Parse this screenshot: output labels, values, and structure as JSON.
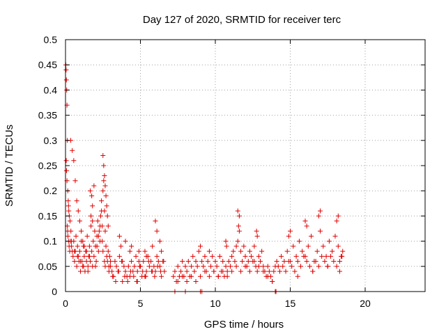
{
  "chart_data": {
    "type": "scatter",
    "title": "Day 127 of 2020, SRMTID for receiver terc",
    "xlabel": "GPS time / hours",
    "ylabel": "SRMTID / TECUs",
    "xlim": [
      0,
      24
    ],
    "ylim": [
      0,
      0.5
    ],
    "x_ticks": [
      0,
      5,
      10,
      15,
      20
    ],
    "x_tick_labels": [
      "0",
      "5",
      "10",
      "15",
      "20"
    ],
    "y_ticks": [
      0,
      0.05,
      0.1,
      0.15,
      0.2,
      0.25,
      0.3,
      0.35,
      0.4,
      0.45,
      0.5
    ],
    "y_tick_labels": [
      "0",
      "0.05",
      "0.1",
      "0.15",
      "0.2",
      "0.25",
      "0.3",
      "0.35",
      "0.4",
      "0.45",
      "0.5"
    ],
    "grid": true,
    "marker": "plus",
    "marker_color": "#e00000",
    "series": [
      {
        "x": [
          0.02,
          0.04,
          0.06,
          0.08,
          0.1,
          0.12,
          0.05,
          0.07,
          0.1,
          0.15,
          0.18,
          0.2,
          0.22,
          0.25,
          0.3,
          0.12,
          0.14,
          0.16,
          0.2,
          0.24,
          0.28,
          0.32,
          0.36,
          0.4,
          0.45,
          0.5,
          0.55,
          0.6,
          0.65,
          0.7,
          0.75,
          0.8,
          0.85,
          0.9,
          0.95,
          1.0,
          1.05,
          1.1,
          1.15,
          1.2,
          1.25,
          1.3,
          1.35,
          1.4,
          1.45,
          1.5,
          1.55,
          1.6,
          1.65,
          1.7,
          1.75,
          1.8,
          1.85,
          1.9,
          1.95,
          2.0,
          2.05,
          2.1,
          2.15,
          2.2,
          2.25,
          2.3,
          2.35,
          2.4,
          2.45,
          2.5,
          2.55,
          2.6,
          2.65,
          2.7,
          2.75,
          2.8,
          2.85,
          2.9,
          2.95,
          3.0,
          0.35,
          0.45,
          0.55,
          0.65,
          0.75,
          0.85,
          0.95,
          1.05,
          1.15,
          1.25,
          1.4,
          1.6,
          1.7,
          1.8,
          1.9,
          2.1,
          2.2,
          2.3,
          2.4,
          2.5,
          2.55,
          2.6,
          2.65,
          2.7,
          2.75,
          2.8,
          2.85,
          2.45,
          2.5,
          2.6,
          2.65,
          1.65,
          1.75,
          1.8,
          0.4,
          0.6,
          0.8,
          1.0,
          1.2,
          1.5,
          2.0,
          2.9
        ],
        "y": [
          0.45,
          0.44,
          0.42,
          0.4,
          0.37,
          0.3,
          0.26,
          0.24,
          0.22,
          0.2,
          0.18,
          0.17,
          0.16,
          0.15,
          0.14,
          0.13,
          0.12,
          0.11,
          0.1,
          0.09,
          0.08,
          0.1,
          0.12,
          0.09,
          0.08,
          0.07,
          0.1,
          0.06,
          0.08,
          0.11,
          0.05,
          0.09,
          0.07,
          0.06,
          0.08,
          0.04,
          0.1,
          0.06,
          0.05,
          0.09,
          0.07,
          0.04,
          0.08,
          0.06,
          0.11,
          0.05,
          0.07,
          0.09,
          0.06,
          0.13,
          0.08,
          0.05,
          0.1,
          0.07,
          0.12,
          0.09,
          0.06,
          0.11,
          0.14,
          0.08,
          0.12,
          0.1,
          0.15,
          0.18,
          0.13,
          0.2,
          0.22,
          0.16,
          0.12,
          0.09,
          0.07,
          0.06,
          0.08,
          0.05,
          0.07,
          0.06,
          0.3,
          0.28,
          0.26,
          0.22,
          0.18,
          0.16,
          0.14,
          0.12,
          0.1,
          0.09,
          0.08,
          0.07,
          0.15,
          0.17,
          0.21,
          0.09,
          0.11,
          0.13,
          0.16,
          0.27,
          0.25,
          0.23,
          0.21,
          0.19,
          0.17,
          0.15,
          0.13,
          0.1,
          0.08,
          0.06,
          0.05,
          0.2,
          0.19,
          0.14,
          0.1,
          0.08,
          0.07,
          0.06,
          0.05,
          0.04,
          0.05,
          0.04
        ],
        "x_cluster2": [
          3.0,
          3.1,
          3.2,
          3.3,
          3.4,
          3.5,
          3.6,
          3.7,
          3.8,
          3.9,
          4.0,
          4.1,
          4.2,
          4.3,
          4.4,
          4.5,
          4.6,
          4.7,
          4.8,
          4.9,
          5.0,
          5.1,
          5.2,
          5.3,
          5.4,
          5.5,
          5.6,
          5.7,
          5.8,
          5.9,
          6.0,
          6.1,
          6.2,
          6.3,
          6.4,
          6.5,
          6.6,
          3.15,
          3.35,
          3.55,
          3.75,
          3.95,
          4.15,
          4.35,
          4.55,
          4.75,
          4.95,
          5.15,
          5.35,
          5.55,
          5.75,
          5.95,
          6.15,
          6.35,
          6.55,
          3.6,
          4.0,
          4.4,
          4.9,
          5.4,
          6.0,
          6.1,
          6.3,
          3.8,
          4.3,
          4.8,
          5.3,
          5.8,
          6.4
        ],
        "y_cluster2": [
          0.05,
          0.04,
          0.03,
          0.06,
          0.05,
          0.04,
          0.07,
          0.09,
          0.06,
          0.05,
          0.04,
          0.03,
          0.05,
          0.08,
          0.06,
          0.04,
          0.05,
          0.07,
          0.04,
          0.06,
          0.05,
          0.03,
          0.06,
          0.08,
          0.04,
          0.07,
          0.05,
          0.06,
          0.09,
          0.05,
          0.04,
          0.07,
          0.06,
          0.05,
          0.08,
          0.06,
          0.04,
          0.03,
          0.02,
          0.04,
          0.06,
          0.03,
          0.02,
          0.04,
          0.03,
          0.02,
          0.05,
          0.04,
          0.03,
          0.06,
          0.04,
          0.03,
          0.05,
          0.04,
          0.06,
          0.11,
          0.1,
          0.09,
          0.08,
          0.07,
          0.14,
          0.12,
          0.1,
          0.02,
          0.03,
          0.02,
          0.03,
          0.04,
          0.03
        ]
      },
      {
        "x": [
          7.2,
          7.3,
          7.4,
          7.5,
          7.6,
          7.7,
          7.8,
          7.9,
          8.0,
          8.1,
          8.2,
          8.3,
          8.4,
          8.5,
          8.6,
          8.7,
          8.8,
          8.9,
          9.0,
          9.1,
          9.2,
          9.3,
          9.4,
          9.5,
          9.6,
          9.7,
          9.8,
          9.9,
          10.0,
          10.1,
          10.2,
          10.3,
          10.4,
          10.5,
          10.6,
          10.7,
          10.8,
          10.9,
          11.0,
          11.1,
          11.2,
          11.3,
          11.4,
          11.5,
          11.6,
          11.7,
          11.8,
          11.9,
          12.0,
          12.1,
          12.2,
          12.3,
          12.4,
          12.5,
          12.6,
          12.7,
          12.8,
          12.9,
          13.0,
          13.1,
          13.2,
          13.3,
          13.4,
          13.5,
          13.6,
          13.7,
          13.8,
          13.9,
          14.0,
          14.1,
          7.5,
          7.8,
          8.1,
          8.4,
          8.7,
          9.0,
          9.3,
          9.6,
          9.9,
          10.2,
          10.5,
          10.8,
          11.1,
          11.4,
          11.7,
          12.0,
          12.3,
          12.6,
          12.9,
          13.2,
          13.5,
          13.8,
          9.0,
          9.1,
          11.5,
          11.6,
          11.55,
          12.75,
          12.8,
          10.7,
          10.75,
          14.0,
          14.05,
          7.3,
          8.0
        ],
        "y": [
          0.03,
          0.04,
          0.02,
          0.05,
          0.03,
          0.04,
          0.06,
          0.03,
          0.05,
          0.04,
          0.06,
          0.03,
          0.05,
          0.07,
          0.04,
          0.06,
          0.05,
          0.08,
          0.09,
          0.06,
          0.05,
          0.07,
          0.04,
          0.06,
          0.08,
          0.05,
          0.07,
          0.04,
          0.06,
          0.05,
          0.03,
          0.07,
          0.04,
          0.06,
          0.03,
          0.05,
          0.04,
          0.06,
          0.05,
          0.07,
          0.08,
          0.06,
          0.09,
          0.1,
          0.12,
          0.08,
          0.06,
          0.09,
          0.07,
          0.05,
          0.06,
          0.08,
          0.07,
          0.06,
          0.09,
          0.05,
          0.04,
          0.07,
          0.06,
          0.08,
          0.05,
          0.04,
          0.03,
          0.05,
          0.04,
          0.03,
          0.02,
          0.04,
          0.05,
          0.06,
          0.02,
          0.03,
          0.02,
          0.03,
          0.02,
          0.03,
          0.04,
          0.03,
          0.04,
          0.03,
          0.04,
          0.03,
          0.04,
          0.05,
          0.04,
          0.05,
          0.04,
          0.06,
          0.05,
          0.04,
          0.03,
          0.02,
          0.0,
          0.0,
          0.16,
          0.15,
          0.13,
          0.12,
          0.11,
          0.1,
          0.09,
          0.0,
          0.0,
          0.0,
          0.0
        ]
      },
      {
        "x": [
          14.2,
          14.4,
          14.6,
          14.8,
          15.0,
          15.2,
          15.4,
          15.6,
          15.8,
          16.0,
          16.2,
          16.4,
          16.6,
          16.8,
          17.0,
          17.2,
          17.4,
          17.6,
          17.8,
          18.0,
          18.2,
          18.4,
          18.5,
          14.3,
          14.5,
          14.7,
          14.9,
          15.1,
          15.3,
          15.5,
          15.7,
          15.9,
          16.1,
          16.3,
          16.5,
          16.7,
          16.9,
          17.1,
          17.3,
          17.5,
          17.7,
          17.9,
          18.1,
          18.3,
          18.45,
          14.9,
          15.0,
          16.0,
          16.1,
          16.9,
          17.0,
          18.1,
          18.2,
          15.5,
          16.5,
          17.5,
          18.3
        ],
        "y": [
          0.05,
          0.07,
          0.06,
          0.08,
          0.06,
          0.09,
          0.07,
          0.1,
          0.08,
          0.07,
          0.09,
          0.11,
          0.06,
          0.08,
          0.12,
          0.09,
          0.07,
          0.1,
          0.08,
          0.11,
          0.09,
          0.07,
          0.08,
          0.04,
          0.05,
          0.04,
          0.06,
          0.05,
          0.04,
          0.06,
          0.05,
          0.07,
          0.06,
          0.05,
          0.04,
          0.06,
          0.05,
          0.07,
          0.06,
          0.05,
          0.07,
          0.06,
          0.05,
          0.06,
          0.07,
          0.11,
          0.12,
          0.14,
          0.13,
          0.15,
          0.16,
          0.14,
          0.15,
          0.03,
          0.04,
          0.05,
          0.04
        ]
      }
    ]
  }
}
